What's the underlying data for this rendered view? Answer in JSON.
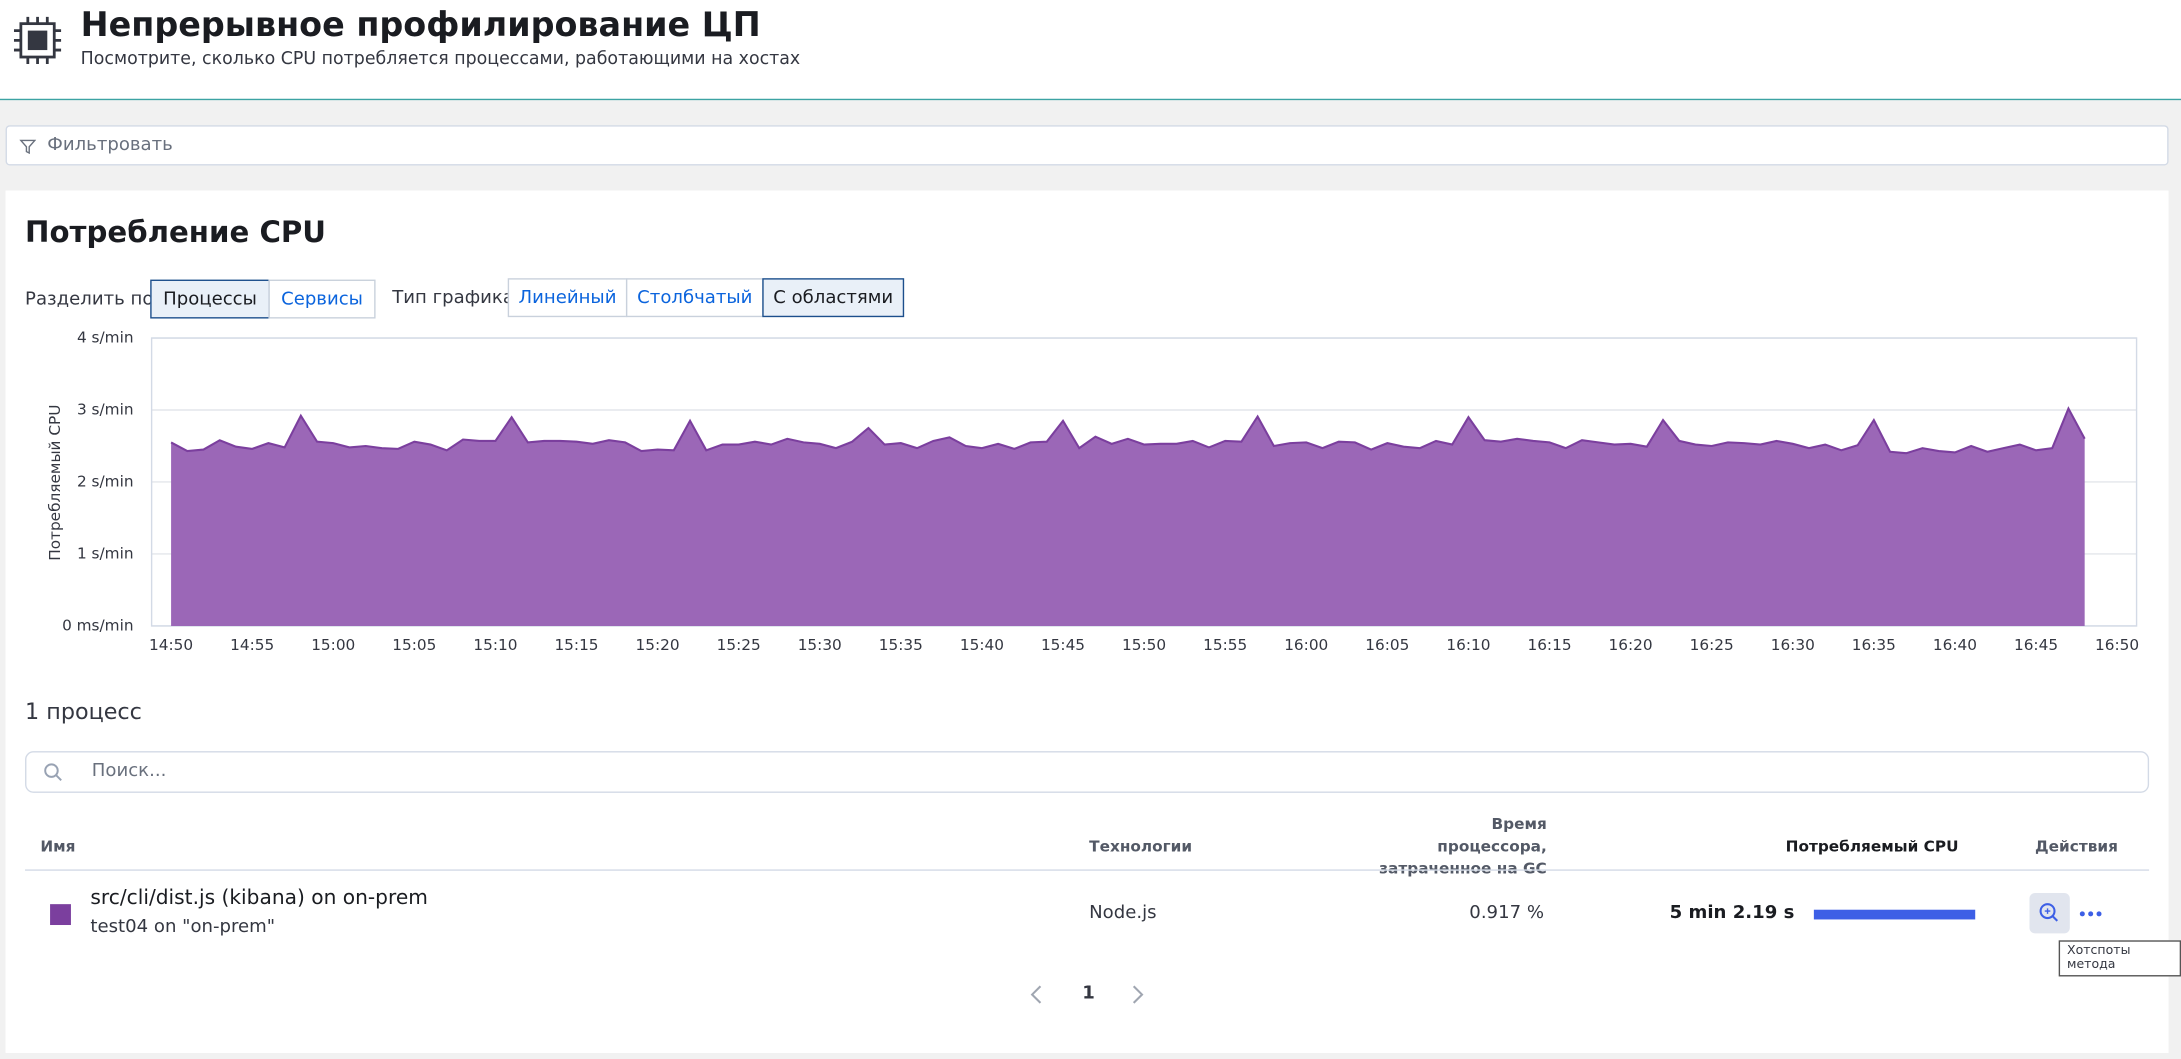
{
  "header": {
    "title": "Непрерывное профилирование ЦП",
    "subtitle": "Посмотрите, сколько CPU потребляется процессами, работающими на хостах"
  },
  "filter": {
    "placeholder": "Фильтровать"
  },
  "panel": {
    "title": "Потребление CPU",
    "split_label": "Разделить по:",
    "split_options": [
      "Процессы",
      "Сервисы"
    ],
    "chart_type_label": "Тип графика:",
    "chart_type_options": [
      "Линейный",
      "Столбчатый",
      "С областями"
    ]
  },
  "chart_data": {
    "type": "area",
    "y_label": "Потребляемый CPU",
    "color": "#9b67b7",
    "line_color": "#7b3f9e",
    "grid": true,
    "ylim": [
      0,
      4
    ],
    "yticks": [
      {
        "value": 0,
        "label": "0 ms/min"
      },
      {
        "value": 1,
        "label": "1 s/min"
      },
      {
        "value": 2,
        "label": "2 s/min"
      },
      {
        "value": 3,
        "label": "3 s/min"
      },
      {
        "value": 4,
        "label": "4 s/min"
      }
    ],
    "xlim": [
      "14:50",
      "16:50"
    ],
    "xticks": [
      "14:50",
      "14:55",
      "15:00",
      "15:05",
      "15:10",
      "15:15",
      "15:20",
      "15:25",
      "15:30",
      "15:35",
      "15:40",
      "15:45",
      "15:50",
      "15:55",
      "16:00",
      "16:05",
      "16:10",
      "16:15",
      "16:20",
      "16:25",
      "16:30",
      "16:35",
      "16:40",
      "16:45",
      "16:50"
    ],
    "x": [
      "14:50",
      "14:51",
      "14:52",
      "14:53",
      "14:54",
      "14:55",
      "14:56",
      "14:57",
      "14:58",
      "14:59",
      "15:00",
      "15:01",
      "15:02",
      "15:03",
      "15:04",
      "15:05",
      "15:06",
      "15:07",
      "15:08",
      "15:09",
      "15:10",
      "15:11",
      "15:12",
      "15:13",
      "15:14",
      "15:15",
      "15:16",
      "15:17",
      "15:18",
      "15:19",
      "15:20",
      "15:21",
      "15:22",
      "15:23",
      "15:24",
      "15:25",
      "15:26",
      "15:27",
      "15:28",
      "15:29",
      "15:30",
      "15:31",
      "15:32",
      "15:33",
      "15:34",
      "15:35",
      "15:36",
      "15:37",
      "15:38",
      "15:39",
      "15:40",
      "15:41",
      "15:42",
      "15:43",
      "15:44",
      "15:45",
      "15:46",
      "15:47",
      "15:48",
      "15:49",
      "15:50",
      "15:51",
      "15:52",
      "15:53",
      "15:54",
      "15:55",
      "15:56",
      "15:57",
      "15:58",
      "15:59",
      "16:00",
      "16:01",
      "16:02",
      "16:03",
      "16:04",
      "16:05",
      "16:06",
      "16:07",
      "16:08",
      "16:09",
      "16:10",
      "16:11",
      "16:12",
      "16:13",
      "16:14",
      "16:15",
      "16:16",
      "16:17",
      "16:18",
      "16:19",
      "16:20",
      "16:21",
      "16:22",
      "16:23",
      "16:24",
      "16:25",
      "16:26",
      "16:27",
      "16:28",
      "16:29",
      "16:30",
      "16:31",
      "16:32",
      "16:33",
      "16:34",
      "16:35",
      "16:36",
      "16:37",
      "16:38",
      "16:39",
      "16:40",
      "16:41",
      "16:42",
      "16:43",
      "16:44",
      "16:45",
      "16:46",
      "16:47",
      "16:48"
    ],
    "values": [
      2.55,
      2.43,
      2.45,
      2.58,
      2.49,
      2.46,
      2.54,
      2.48,
      2.92,
      2.56,
      2.54,
      2.48,
      2.5,
      2.47,
      2.46,
      2.56,
      2.52,
      2.44,
      2.59,
      2.57,
      2.57,
      2.9,
      2.55,
      2.57,
      2.57,
      2.56,
      2.53,
      2.58,
      2.55,
      2.43,
      2.45,
      2.44,
      2.85,
      2.44,
      2.52,
      2.52,
      2.56,
      2.52,
      2.6,
      2.55,
      2.53,
      2.47,
      2.56,
      2.75,
      2.52,
      2.54,
      2.47,
      2.57,
      2.62,
      2.5,
      2.47,
      2.53,
      2.46,
      2.55,
      2.56,
      2.85,
      2.47,
      2.63,
      2.53,
      2.6,
      2.52,
      2.53,
      2.53,
      2.57,
      2.48,
      2.57,
      2.56,
      2.91,
      2.5,
      2.54,
      2.55,
      2.47,
      2.56,
      2.55,
      2.45,
      2.54,
      2.49,
      2.47,
      2.57,
      2.52,
      2.9,
      2.58,
      2.56,
      2.6,
      2.57,
      2.55,
      2.47,
      2.58,
      2.55,
      2.52,
      2.53,
      2.49,
      2.86,
      2.57,
      2.52,
      2.5,
      2.55,
      2.54,
      2.52,
      2.57,
      2.53,
      2.47,
      2.52,
      2.44,
      2.51,
      2.86,
      2.42,
      2.4,
      2.47,
      2.43,
      2.41,
      2.5,
      2.42,
      2.47,
      2.52,
      2.44,
      2.47,
      3.02,
      2.6
    ]
  },
  "process_table": {
    "count_label": "1 процесс",
    "search_placeholder": "Поиск...",
    "columns": [
      "Имя",
      "Технологии",
      "Время процессора, затраченное на GC",
      "Потребляемый CPU",
      "Действия"
    ],
    "rows": [
      {
        "name": "src/cli/dist.js (kibana) on on-prem",
        "host": "test04 on \"on-prem\"",
        "technology": "Node.js",
        "gc_time": "0.917 %",
        "cpu": "5 min 2.19 s"
      }
    ],
    "action_tooltip": "Хотспоты метода",
    "page": "1"
  }
}
